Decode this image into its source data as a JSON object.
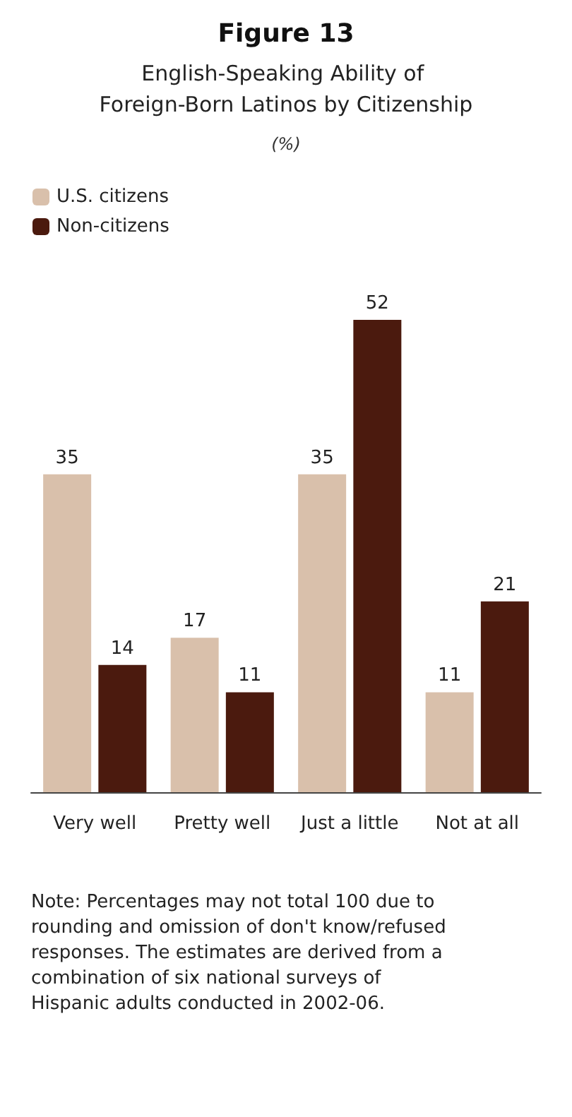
{
  "chart_data": {
    "type": "bar",
    "title": "Figure 13",
    "subtitle": "English-Speaking Ability of Foreign-Born Latinos by Citizenship",
    "categories": [
      "Very well",
      "Pretty well",
      "Just a little",
      "Not at all"
    ],
    "series": [
      {
        "name": "U.S. citizens",
        "color": "#d9c0ab",
        "values": [
          35,
          17,
          35,
          11
        ]
      },
      {
        "name": "Non-citizens",
        "color": "#4b1a0e",
        "values": [
          14,
          11,
          52,
          21
        ]
      }
    ],
    "data_labels": true,
    "legend": "top left",
    "annotations": [
      "(%)",
      "Note: Percentages may not total 100 due to rounding and omission of don't know/refused responses. The estimates are derived from a combination of six national surveys of Hispanic adults conducted in 2002-06."
    ]
  }
}
